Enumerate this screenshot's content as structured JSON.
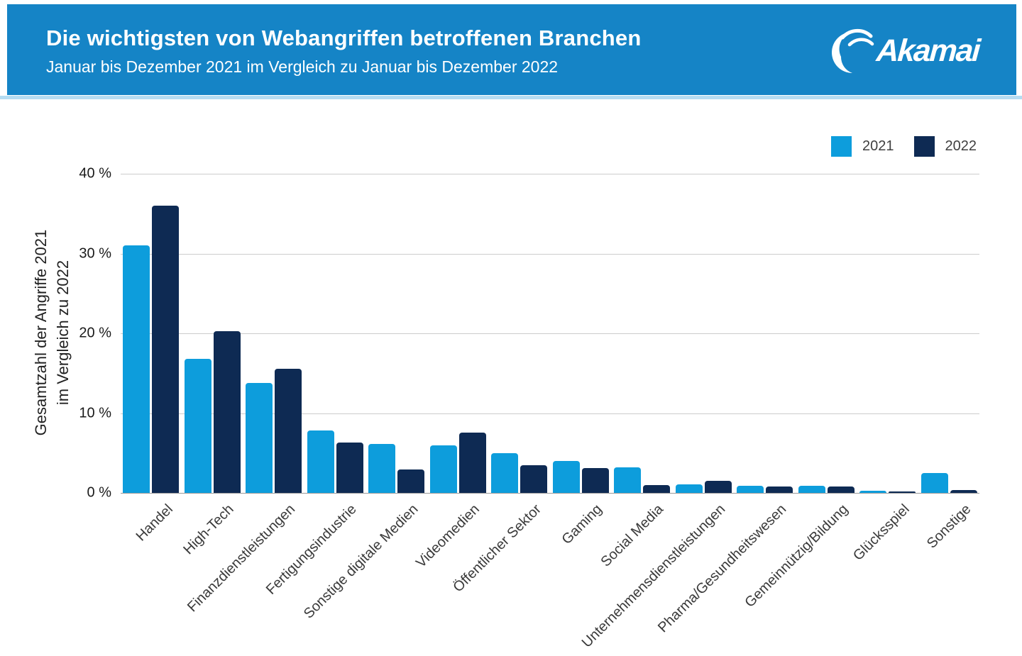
{
  "header": {
    "title": "Die wichtigsten von Webangriffen betroffenen Branchen",
    "subtitle": "Januar bis Dezember 2021 im Vergleich zu Januar bis Dezember 2022",
    "logo_text": "Akamai"
  },
  "colors": {
    "header_bg": "#1584C6",
    "header_divider": "#B5DCF2",
    "series_2021": "#0D9DDC",
    "series_2022": "#0E2A53",
    "gridline": "#CCCCCC",
    "baseline": "#999999"
  },
  "legend": [
    {
      "label": "2021",
      "color": "#0D9DDC"
    },
    {
      "label": "2022",
      "color": "#0E2A53"
    }
  ],
  "chart_data": {
    "type": "bar",
    "title": "Die wichtigsten von Webangriffen betroffenen Branchen",
    "subtitle": "Januar bis Dezember 2021 im Vergleich zu Januar bis Dezember 2022",
    "categories": [
      "Handel",
      "High-Tech",
      "Finanzdienstleistungen",
      "Fertigungsindustrie",
      "Sonstige digitale Medien",
      "Videomedien",
      "Öffentlicher Sektor",
      "Gaming",
      "Social Media",
      "Unternehmensdienstleistungen",
      "Pharma/Gesundheitswesen",
      "Gemeinnützig/Bildung",
      "Glücksspiel",
      "Sonstige"
    ],
    "series": [
      {
        "name": "2021",
        "color": "#0D9DDC",
        "values": [
          31,
          16.8,
          13.8,
          7.8,
          6.1,
          6.0,
          5.0,
          4.0,
          3.2,
          1.1,
          0.9,
          0.9,
          0.3,
          2.5
        ]
      },
      {
        "name": "2022",
        "color": "#0E2A53",
        "values": [
          36,
          20.3,
          15.6,
          6.3,
          2.9,
          7.6,
          3.5,
          3.1,
          1.0,
          1.5,
          0.8,
          0.8,
          0.2,
          0.4
        ]
      }
    ],
    "ylabel_lines": [
      "Gesamtzahl der Angriffe 2021",
      "im Vergleich zu 2022"
    ],
    "yticks": [
      {
        "value": 0,
        "label": "0 %"
      },
      {
        "value": 10,
        "label": "10 %"
      },
      {
        "value": 20,
        "label": "20 %"
      },
      {
        "value": 30,
        "label": "30 %"
      },
      {
        "value": 40,
        "label": "40 %"
      }
    ],
    "ylim": [
      0,
      40
    ],
    "grid": true,
    "legend_position": "top-right",
    "unit": "%"
  }
}
